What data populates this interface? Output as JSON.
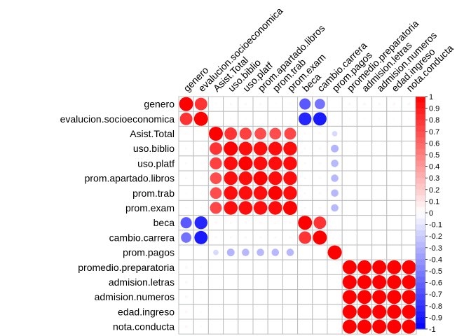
{
  "chart_data": {
    "type": "heatmap",
    "style": "circle",
    "title": "",
    "variables": [
      "genero",
      "evalucion.socioeconomica",
      "Asist.Total",
      "uso.biblio",
      "uso.platf",
      "prom.apartado.libros",
      "prom.trab",
      "prom.exam",
      "beca",
      "cambio.carrera",
      "prom.pagos",
      "promedio.preparatoria",
      "admision.letras",
      "admision.numeros",
      "edad.ingreso",
      "nota.conducta"
    ],
    "matrix": [
      [
        1.0,
        0.8,
        0.02,
        0.03,
        0.03,
        0.03,
        0.02,
        0.02,
        -0.65,
        -0.55,
        0.01,
        0.04,
        0.04,
        0.04,
        0.04,
        0.04
      ],
      [
        0.8,
        1.0,
        0.01,
        0.02,
        0.02,
        0.02,
        0.02,
        0.02,
        -0.85,
        -0.9,
        0.01,
        0.02,
        0.02,
        0.02,
        0.02,
        0.02
      ],
      [
        0.02,
        0.01,
        1.0,
        0.8,
        0.75,
        0.7,
        0.7,
        0.72,
        0.03,
        0.03,
        -0.15,
        0.01,
        0.01,
        0.01,
        0.01,
        0.01
      ],
      [
        0.03,
        0.02,
        0.8,
        1.0,
        0.95,
        0.95,
        0.95,
        0.95,
        0.03,
        0.03,
        -0.3,
        0.01,
        0.01,
        0.01,
        0.01,
        0.01
      ],
      [
        0.03,
        0.02,
        0.75,
        0.95,
        1.0,
        0.95,
        0.95,
        0.95,
        0.03,
        0.03,
        -0.28,
        0.01,
        0.01,
        0.01,
        0.01,
        0.01
      ],
      [
        0.03,
        0.02,
        0.7,
        0.95,
        0.95,
        1.0,
        0.95,
        0.95,
        0.03,
        0.03,
        -0.28,
        0.01,
        0.01,
        0.01,
        0.01,
        0.01
      ],
      [
        0.02,
        0.02,
        0.7,
        0.95,
        0.95,
        0.95,
        1.0,
        0.95,
        0.03,
        0.03,
        -0.28,
        0.01,
        0.01,
        0.01,
        0.01,
        0.01
      ],
      [
        0.02,
        0.02,
        0.72,
        0.95,
        0.95,
        0.95,
        0.95,
        1.0,
        0.03,
        0.03,
        -0.28,
        0.01,
        0.01,
        0.01,
        0.01,
        0.01
      ],
      [
        -0.65,
        -0.85,
        0.03,
        0.03,
        0.03,
        0.03,
        0.03,
        0.03,
        1.0,
        0.8,
        0.01,
        0.01,
        0.01,
        0.01,
        0.01,
        0.01
      ],
      [
        -0.55,
        -0.9,
        0.03,
        0.03,
        0.03,
        0.03,
        0.03,
        0.03,
        0.8,
        1.0,
        0.01,
        0.01,
        0.01,
        0.01,
        0.01,
        0.01
      ],
      [
        0.01,
        0.01,
        -0.15,
        -0.3,
        -0.28,
        -0.28,
        -0.28,
        -0.28,
        0.01,
        0.01,
        1.0,
        0.01,
        0.01,
        0.01,
        0.01,
        0.01
      ],
      [
        0.04,
        0.02,
        0.01,
        0.01,
        0.01,
        0.01,
        0.01,
        0.01,
        0.01,
        0.01,
        0.01,
        1.0,
        1.0,
        1.0,
        1.0,
        1.0
      ],
      [
        0.04,
        0.02,
        0.01,
        0.01,
        0.01,
        0.01,
        0.01,
        0.01,
        0.01,
        0.01,
        0.01,
        1.0,
        1.0,
        1.0,
        1.0,
        1.0
      ],
      [
        0.04,
        0.02,
        0.01,
        0.01,
        0.01,
        0.01,
        0.01,
        0.01,
        0.01,
        0.01,
        0.01,
        1.0,
        1.0,
        1.0,
        1.0,
        1.0
      ],
      [
        0.04,
        0.02,
        0.01,
        0.01,
        0.01,
        0.01,
        0.01,
        0.01,
        0.01,
        0.01,
        0.01,
        1.0,
        1.0,
        1.0,
        1.0,
        1.0
      ],
      [
        0.04,
        0.02,
        0.01,
        0.01,
        0.01,
        0.01,
        0.01,
        0.01,
        0.01,
        0.01,
        0.01,
        1.0,
        1.0,
        1.0,
        1.0,
        1.0
      ]
    ],
    "color_scale": {
      "min": -1,
      "max": 1,
      "negative_color": "#0000FF",
      "zero_color": "#FFFFFF",
      "positive_color": "#FF0000",
      "ticks": [
        "1",
        "0.9",
        "0.8",
        "0.7",
        "0.6",
        "0.5",
        "0.4",
        "0.3",
        "0.2",
        "0.1",
        "0",
        "-0.1",
        "-0.2",
        "-0.3",
        "-0.4",
        "-0.5",
        "-0.6",
        "-0.7",
        "-0.8",
        "-0.9",
        "-1"
      ]
    },
    "grid": true,
    "legend_placement": "right"
  }
}
